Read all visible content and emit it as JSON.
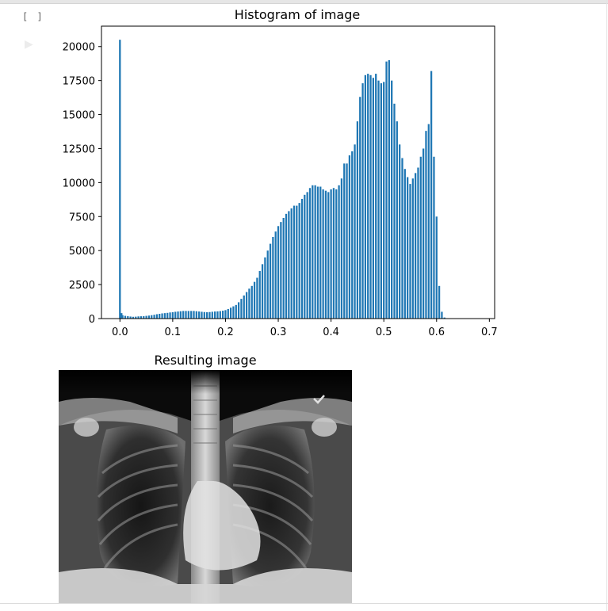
{
  "cell": {
    "prompt": "[ ]",
    "run_icon": "play-icon"
  },
  "histogram": {
    "title": "Histogram of image",
    "chart_data": {
      "type": "bar",
      "title": "Histogram of image",
      "xlabel": "",
      "ylabel": "",
      "xlim": [
        -0.035,
        0.71
      ],
      "ylim": [
        0,
        21500
      ],
      "xticks": [
        0.0,
        0.1,
        0.2,
        0.3,
        0.4,
        0.5,
        0.6,
        0.7
      ],
      "xtick_labels": [
        "0.0",
        "0.1",
        "0.2",
        "0.3",
        "0.4",
        "0.5",
        "0.6",
        "0.7"
      ],
      "yticks": [
        0,
        2500,
        5000,
        7500,
        10000,
        12500,
        15000,
        17500,
        20000
      ],
      "ytick_labels": [
        "0",
        "2500",
        "5000",
        "7500",
        "10000",
        "12500",
        "15000",
        "17500",
        "20000"
      ],
      "bar_color": "#1f77b4",
      "grid": false,
      "bin_width": 0.0034,
      "bins": [
        [
          0.0,
          20500
        ],
        [
          0.003,
          400
        ],
        [
          0.005,
          250
        ],
        [
          0.01,
          200
        ],
        [
          0.015,
          180
        ],
        [
          0.02,
          150
        ],
        [
          0.025,
          130
        ],
        [
          0.03,
          140
        ],
        [
          0.035,
          160
        ],
        [
          0.04,
          170
        ],
        [
          0.045,
          180
        ],
        [
          0.05,
          200
        ],
        [
          0.055,
          220
        ],
        [
          0.06,
          250
        ],
        [
          0.065,
          280
        ],
        [
          0.07,
          320
        ],
        [
          0.075,
          350
        ],
        [
          0.08,
          380
        ],
        [
          0.085,
          400
        ],
        [
          0.09,
          420
        ],
        [
          0.095,
          450
        ],
        [
          0.1,
          470
        ],
        [
          0.105,
          500
        ],
        [
          0.11,
          520
        ],
        [
          0.115,
          540
        ],
        [
          0.12,
          560
        ],
        [
          0.125,
          560
        ],
        [
          0.13,
          560
        ],
        [
          0.135,
          560
        ],
        [
          0.14,
          560
        ],
        [
          0.145,
          540
        ],
        [
          0.15,
          520
        ],
        [
          0.155,
          500
        ],
        [
          0.16,
          480
        ],
        [
          0.165,
          470
        ],
        [
          0.17,
          480
        ],
        [
          0.175,
          500
        ],
        [
          0.18,
          520
        ],
        [
          0.185,
          530
        ],
        [
          0.19,
          550
        ],
        [
          0.195,
          580
        ],
        [
          0.2,
          620
        ],
        [
          0.205,
          700
        ],
        [
          0.21,
          800
        ],
        [
          0.215,
          900
        ],
        [
          0.22,
          1000
        ],
        [
          0.225,
          1200
        ],
        [
          0.23,
          1450
        ],
        [
          0.235,
          1700
        ],
        [
          0.24,
          1950
        ],
        [
          0.245,
          2200
        ],
        [
          0.25,
          2400
        ],
        [
          0.255,
          2700
        ],
        [
          0.26,
          3000
        ],
        [
          0.265,
          3500
        ],
        [
          0.27,
          4000
        ],
        [
          0.275,
          4500
        ],
        [
          0.28,
          5000
        ],
        [
          0.285,
          5500
        ],
        [
          0.29,
          6000
        ],
        [
          0.295,
          6400
        ],
        [
          0.3,
          6800
        ],
        [
          0.305,
          7100
        ],
        [
          0.31,
          7400
        ],
        [
          0.315,
          7700
        ],
        [
          0.32,
          7900
        ],
        [
          0.325,
          8100
        ],
        [
          0.33,
          8300
        ],
        [
          0.335,
          8300
        ],
        [
          0.34,
          8500
        ],
        [
          0.345,
          8800
        ],
        [
          0.35,
          9100
        ],
        [
          0.355,
          9300
        ],
        [
          0.36,
          9600
        ],
        [
          0.365,
          9800
        ],
        [
          0.37,
          9800
        ],
        [
          0.375,
          9700
        ],
        [
          0.38,
          9700
        ],
        [
          0.385,
          9500
        ],
        [
          0.39,
          9400
        ],
        [
          0.395,
          9300
        ],
        [
          0.4,
          9500
        ],
        [
          0.405,
          9600
        ],
        [
          0.41,
          9500
        ],
        [
          0.415,
          9800
        ],
        [
          0.42,
          10300
        ],
        [
          0.425,
          11400
        ],
        [
          0.43,
          11400
        ],
        [
          0.435,
          12000
        ],
        [
          0.44,
          12300
        ],
        [
          0.445,
          12800
        ],
        [
          0.45,
          14500
        ],
        [
          0.455,
          16300
        ],
        [
          0.46,
          17300
        ],
        [
          0.465,
          17900
        ],
        [
          0.47,
          18000
        ],
        [
          0.475,
          17900
        ],
        [
          0.48,
          17700
        ],
        [
          0.485,
          18000
        ],
        [
          0.49,
          17500
        ],
        [
          0.495,
          17300
        ],
        [
          0.5,
          17400
        ],
        [
          0.505,
          18900
        ],
        [
          0.51,
          19000
        ],
        [
          0.515,
          17500
        ],
        [
          0.52,
          15800
        ],
        [
          0.525,
          14500
        ],
        [
          0.53,
          12800
        ],
        [
          0.535,
          11800
        ],
        [
          0.54,
          11000
        ],
        [
          0.545,
          10400
        ],
        [
          0.55,
          9900
        ],
        [
          0.555,
          10300
        ],
        [
          0.56,
          10700
        ],
        [
          0.565,
          11100
        ],
        [
          0.57,
          11900
        ],
        [
          0.575,
          12500
        ],
        [
          0.58,
          13800
        ],
        [
          0.585,
          14300
        ],
        [
          0.59,
          18200
        ],
        [
          0.595,
          11900
        ],
        [
          0.6,
          7500
        ],
        [
          0.605,
          2400
        ],
        [
          0.61,
          500
        ],
        [
          0.615,
          80
        ]
      ]
    }
  },
  "result": {
    "title": "Resulting image"
  }
}
